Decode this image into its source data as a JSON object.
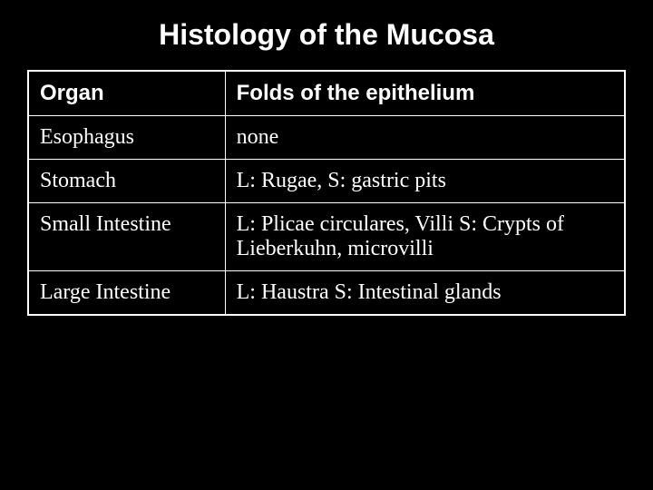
{
  "title": "Histology of the Mucosa",
  "title_fontsize": 32,
  "background_color": "#000000",
  "text_color": "#ffffff",
  "border_color": "#ffffff",
  "table": {
    "columns": [
      {
        "key": "organ",
        "label": "Organ",
        "width": "33%"
      },
      {
        "key": "folds",
        "label": "Folds of the epithelium",
        "width": "67%"
      }
    ],
    "header_fontsize": 24,
    "cell_fontsize": 24,
    "rows": [
      {
        "organ": "Esophagus",
        "folds": "none"
      },
      {
        "organ": "Stomach",
        "folds": "L:  Rugae, S:  gastric pits"
      },
      {
        "organ": "Small Intestine",
        "folds": "L:  Plicae circulares, Villi  S: Crypts of Lieberkuhn, microvilli"
      },
      {
        "organ": "Large Intestine",
        "folds": "L:  Haustra  S:  Intestinal glands"
      }
    ]
  }
}
